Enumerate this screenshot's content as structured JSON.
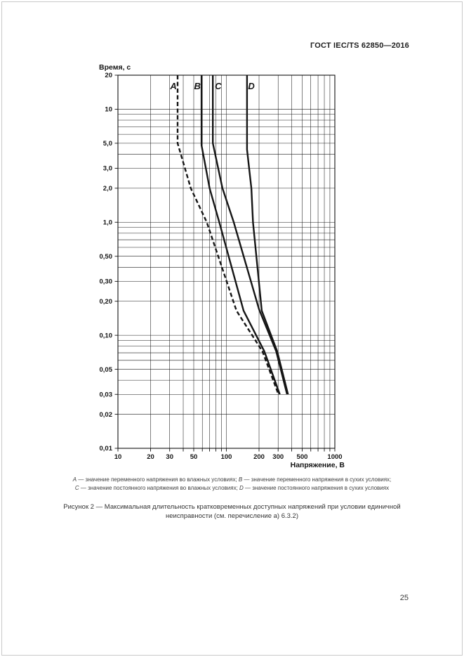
{
  "page": {
    "header": "ГОСТ IEC/TS 62850—2016",
    "page_number": "25"
  },
  "chart_data": {
    "type": "line",
    "title": "",
    "xlabel": "Напряжение, В",
    "ylabel": "Время, с",
    "x_scale": "log",
    "y_scale": "log",
    "xlim": [
      10,
      1000
    ],
    "ylim": [
      0.01,
      20
    ],
    "grid": "full log grid, major and minor lines, both axes",
    "legend_position": "labels above curves inside plot",
    "x_ticks": [
      {
        "v": 10,
        "label": "10"
      },
      {
        "v": 20,
        "label": "20"
      },
      {
        "v": 30,
        "label": "30"
      },
      {
        "v": 50,
        "label": "50"
      },
      {
        "v": 100,
        "label": "100"
      },
      {
        "v": 200,
        "label": "200"
      },
      {
        "v": 300,
        "label": "300"
      },
      {
        "v": 500,
        "label": "500"
      },
      {
        "v": 1000,
        "label": "1000"
      }
    ],
    "y_ticks": [
      {
        "v": 20,
        "label": "20"
      },
      {
        "v": 10,
        "label": "10"
      },
      {
        "v": 5,
        "label": "5,0"
      },
      {
        "v": 3,
        "label": "3,0"
      },
      {
        "v": 2,
        "label": "2,0"
      },
      {
        "v": 1,
        "label": "1,0"
      },
      {
        "v": 0.5,
        "label": "0,50"
      },
      {
        "v": 0.3,
        "label": "0,30"
      },
      {
        "v": 0.2,
        "label": "0,20"
      },
      {
        "v": 0.1,
        "label": "0,10"
      },
      {
        "v": 0.05,
        "label": "0,05"
      },
      {
        "v": 0.03,
        "label": "0,03"
      },
      {
        "v": 0.02,
        "label": "0,02"
      },
      {
        "v": 0.01,
        "label": "0,01"
      }
    ],
    "series": [
      {
        "name": "A",
        "line": "dashed",
        "label_v": 32.5,
        "label_t": 15,
        "points": [
          [
            35.5,
            20
          ],
          [
            35.5,
            5
          ],
          [
            47,
            2
          ],
          [
            66,
            1
          ],
          [
            124,
            0.165
          ],
          [
            215,
            0.072
          ],
          [
            302,
            0.03
          ]
        ]
      },
      {
        "name": "B",
        "line": "solid",
        "label_v": 54,
        "label_t": 15,
        "points": [
          [
            59,
            20
          ],
          [
            59,
            4.8
          ],
          [
            70,
            2
          ],
          [
            86,
            1
          ],
          [
            144,
            0.165
          ],
          [
            224,
            0.072
          ],
          [
            311,
            0.03
          ]
        ]
      },
      {
        "name": "C",
        "line": "solid",
        "label_v": 84,
        "label_t": 15,
        "points": [
          [
            75,
            20
          ],
          [
            75,
            5
          ],
          [
            92,
            2
          ],
          [
            117,
            1
          ],
          [
            200,
            0.17
          ],
          [
            288,
            0.072
          ],
          [
            363,
            0.03
          ]
        ]
      },
      {
        "name": "D",
        "line": "solid",
        "label_v": 170,
        "label_t": 15,
        "points": [
          [
            155,
            20
          ],
          [
            155,
            4.4
          ],
          [
            170,
            2
          ],
          [
            176,
            1
          ],
          [
            212,
            0.165
          ],
          [
            294,
            0.072
          ],
          [
            370,
            0.03
          ]
        ]
      }
    ],
    "curve_color": "#151515"
  },
  "legend": {
    "dash": " — ",
    "rows": [
      [
        {
          "letter": "A",
          "text": "значение переменного напряжения во влажных условиях",
          "after": "; "
        },
        {
          "letter": "B",
          "text": "значение переменного напряжения в сухих условиях",
          "after": ";"
        }
      ],
      [
        {
          "letter": "C",
          "text": "значение постоянного напряжения во влажных условиях",
          "after": "; "
        },
        {
          "letter": "D",
          "text": "значение постоянного напряжения в сухих условиях",
          "after": ""
        }
      ]
    ]
  },
  "caption": {
    "line1": "Рисунок 2 — Максимальная длительность кратковременных доступных напряжений при условии единичной",
    "line2": "неисправности (см. перечисление а) 6.3.2)"
  }
}
